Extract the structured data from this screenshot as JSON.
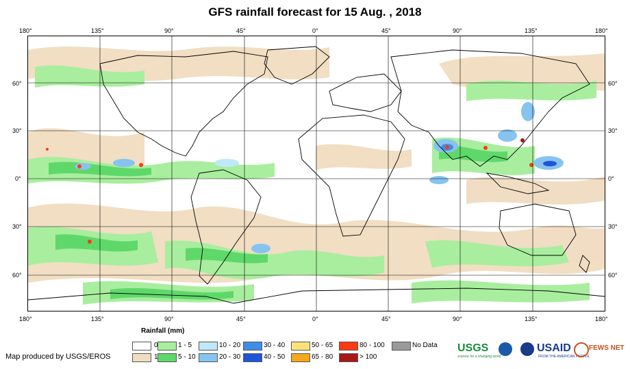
{
  "title": "GFS rainfall forecast for 15 Aug. , 2018",
  "lon_ticks": [
    "180°",
    "135°",
    "90°",
    "45°",
    "0°",
    "45°",
    "90°",
    "135°",
    "180°"
  ],
  "lat_ticks": [
    "60°",
    "30°",
    "0°",
    "30°",
    "60°"
  ],
  "legend": {
    "title": "Rainfall (mm)",
    "items": [
      {
        "label": "0",
        "color": "#ffffff"
      },
      {
        "label": "1",
        "color": "#f0dcc0"
      },
      {
        "label": "1 - 5",
        "color": "#a8ee9e"
      },
      {
        "label": "5 - 10",
        "color": "#5fd86a"
      },
      {
        "label": "10 - 20",
        "color": "#bfe8f8"
      },
      {
        "label": "20 - 30",
        "color": "#86c4ef"
      },
      {
        "label": "30 - 40",
        "color": "#3f8ee6"
      },
      {
        "label": "40 - 50",
        "color": "#1f55d8"
      },
      {
        "label": "50 - 65",
        "color": "#ffe27a"
      },
      {
        "label": "65 - 80",
        "color": "#f5a81c"
      },
      {
        "label": "80 - 100",
        "color": "#ff3a12"
      },
      {
        "label": "> 100",
        "color": "#a81818"
      },
      {
        "label": "No Data",
        "color": "#9a9a9a"
      }
    ]
  },
  "credit": "Map produced by USGS/EROS",
  "logos": {
    "usgs": "USGS",
    "usgs_tagline": "science for a changing world",
    "usaid": "USAID",
    "usaid_tagline": "FROM THE AMERICAN PEOPLE",
    "fewsnet": "FEWS NET"
  },
  "colors": {
    "land_outline": "#000000",
    "graticule": "#000000",
    "usgs_green": "#1a8a3a",
    "usaid_blue": "#1a3a8a",
    "usaid_red": "#c8102e",
    "fews_orange": "#c8501a"
  }
}
